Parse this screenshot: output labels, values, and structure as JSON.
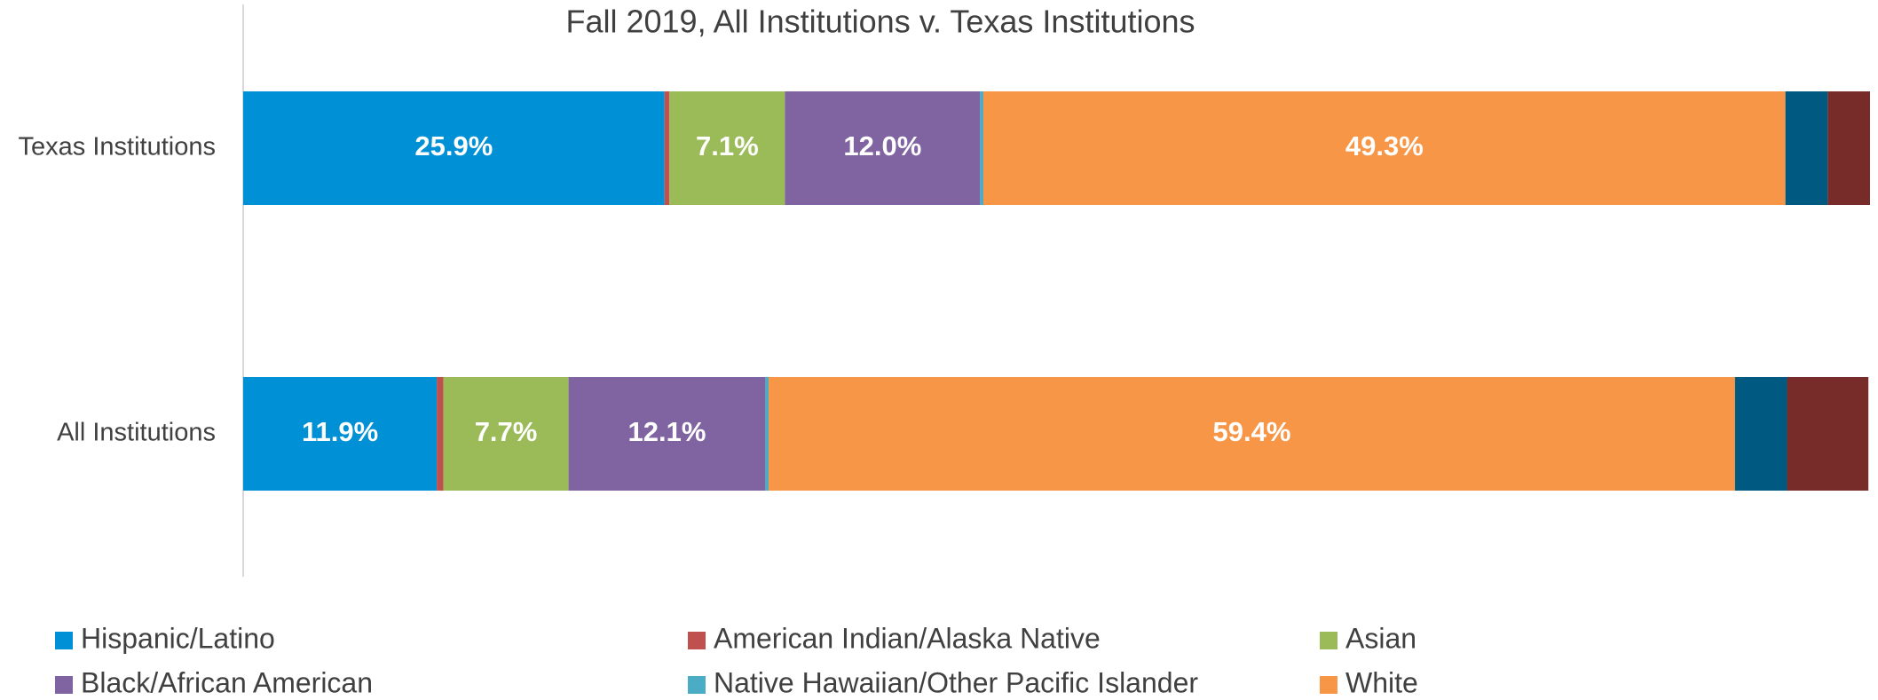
{
  "chart_data": {
    "type": "stacked_barh",
    "title": "Fall 2019, All Institutions v. Texas Institutions",
    "categories": [
      "Texas Institutions",
      "All Institutions"
    ],
    "xlim": [
      0,
      100
    ],
    "series": [
      {
        "name": "Hispanic/Latino",
        "color": "#0090d6",
        "values": [
          25.9,
          11.9
        ],
        "value_labels": [
          "25.9%",
          "11.9%"
        ]
      },
      {
        "name": "American Indian/Alaska Native",
        "color": "#c0504d",
        "values": [
          0.3,
          0.4
        ]
      },
      {
        "name": "Asian",
        "color": "#9bbb59",
        "values": [
          7.1,
          7.7
        ],
        "value_labels": [
          "7.1%",
          "7.7%"
        ]
      },
      {
        "name": "Black/African American",
        "color": "#8064a2",
        "values": [
          12.0,
          12.1
        ],
        "value_labels": [
          "12.0%",
          "12.1%"
        ]
      },
      {
        "name": "Native Hawaiian/Other Pacific Islander",
        "color": "#4bacc6",
        "values": [
          0.2,
          0.2
        ]
      },
      {
        "name": "White",
        "color": "#f79646",
        "values": [
          49.3,
          59.4
        ],
        "value_labels": [
          "49.3%",
          "59.4%"
        ]
      },
      {
        "color": "#005980",
        "values": [
          2.6,
          3.2
        ]
      },
      {
        "color": "#772c2a",
        "values": [
          2.6,
          5.0
        ]
      }
    ]
  }
}
